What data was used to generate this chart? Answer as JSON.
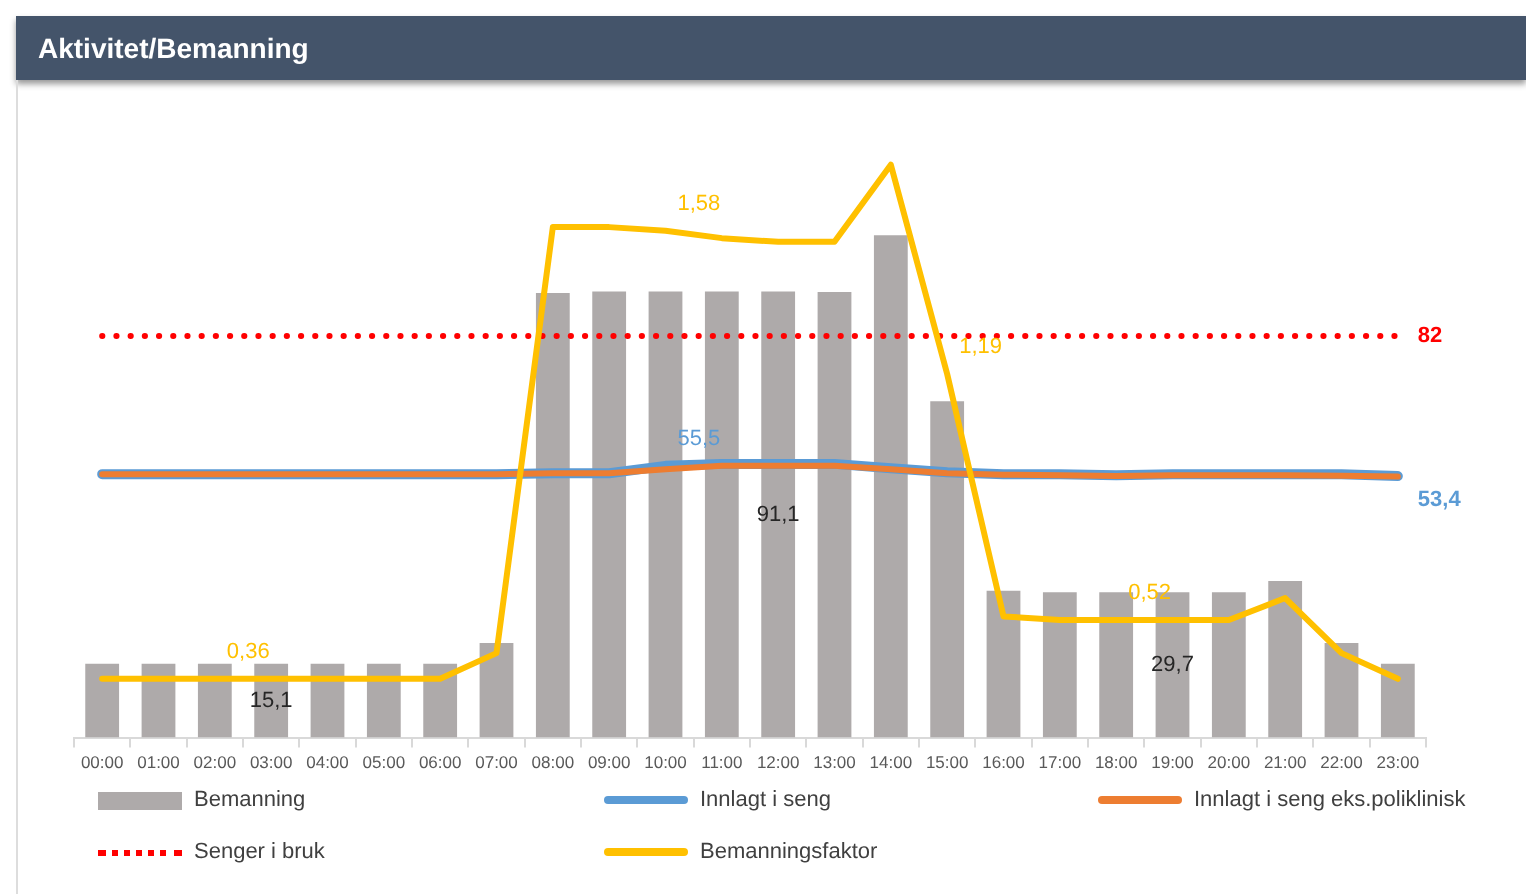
{
  "chart_data": {
    "type": "bar",
    "title": "Aktivitet/Bemanning",
    "categories": [
      "00:00",
      "01:00",
      "02:00",
      "03:00",
      "04:00",
      "05:00",
      "06:00",
      "07:00",
      "08:00",
      "09:00",
      "10:00",
      "11:00",
      "12:00",
      "13:00",
      "14:00",
      "15:00",
      "16:00",
      "17:00",
      "18:00",
      "19:00",
      "20:00",
      "21:00",
      "22:00",
      "23:00"
    ],
    "series": [
      {
        "name": "Bemanning",
        "type": "bar",
        "color": "#aeaaaa",
        "values": [
          15.1,
          15.1,
          15.1,
          15.1,
          15.1,
          15.1,
          15.1,
          19.3,
          90.8,
          91.1,
          91.1,
          91.1,
          91.1,
          91,
          102.6,
          68.7,
          30,
          29.7,
          29.7,
          29.7,
          29.7,
          32,
          19.3,
          15.1
        ],
        "value_labels": [
          null,
          null,
          null,
          "15,1",
          null,
          null,
          null,
          null,
          null,
          null,
          null,
          null,
          "91,1",
          null,
          null,
          null,
          null,
          null,
          null,
          "29,7",
          null,
          null,
          null,
          null
        ]
      },
      {
        "name": "Innlagt i seng",
        "type": "line",
        "color": "#5b9bd5",
        "values": [
          53.8,
          53.8,
          53.8,
          53.8,
          53.8,
          53.8,
          53.8,
          53.8,
          54,
          54,
          55.5,
          55.9,
          55.9,
          55.9,
          55,
          54.2,
          53.8,
          53.8,
          53.6,
          53.8,
          53.8,
          53.8,
          53.8,
          53.4
        ],
        "value_labels": [
          null,
          null,
          null,
          null,
          null,
          null,
          null,
          null,
          null,
          null,
          "55,5",
          null,
          null,
          null,
          null,
          null,
          null,
          null,
          null,
          null,
          null,
          null,
          null,
          "53,4"
        ]
      },
      {
        "name": "Innlagt i seng eks.poliklinisk",
        "type": "line",
        "color": "#ed7d31",
        "values": [
          53.8,
          53.8,
          53.8,
          53.8,
          53.8,
          53.8,
          53.8,
          53.8,
          54,
          54,
          54.8,
          55.5,
          55.5,
          55.5,
          54.8,
          54,
          53.7,
          53.6,
          53.4,
          53.6,
          53.6,
          53.6,
          53.5,
          53.3
        ]
      },
      {
        "name": "Senger i bruk",
        "type": "line",
        "color": "#ff0000",
        "line_style": "dotted",
        "values": [
          82,
          82,
          82,
          82,
          82,
          82,
          82,
          82,
          82,
          82,
          82,
          82,
          82,
          82,
          82,
          82,
          82,
          82,
          82,
          82,
          82,
          82,
          82,
          82
        ],
        "value_labels": [
          null,
          null,
          null,
          null,
          null,
          null,
          null,
          null,
          null,
          null,
          null,
          null,
          null,
          null,
          null,
          null,
          null,
          null,
          null,
          null,
          null,
          null,
          null,
          "82"
        ]
      },
      {
        "name": "Bemanningsfaktor",
        "type": "line",
        "axis": "y2",
        "color": "#ffc000",
        "values": [
          0.36,
          0.36,
          0.36,
          0.36,
          0.36,
          0.36,
          0.36,
          0.43,
          1.59,
          1.59,
          1.58,
          1.56,
          1.55,
          1.55,
          1.76,
          1.19,
          0.53,
          0.52,
          0.52,
          0.52,
          0.52,
          0.58,
          0.43,
          0.36
        ],
        "value_labels": [
          null,
          null,
          "0,36",
          null,
          null,
          null,
          null,
          null,
          null,
          null,
          "1,58",
          null,
          null,
          null,
          null,
          "1,19",
          null,
          null,
          "0,52",
          null,
          null,
          null,
          null,
          null
        ]
      }
    ],
    "tick_labels": "x",
    "grid": false,
    "legend": "bottom",
    "marker": "none"
  }
}
